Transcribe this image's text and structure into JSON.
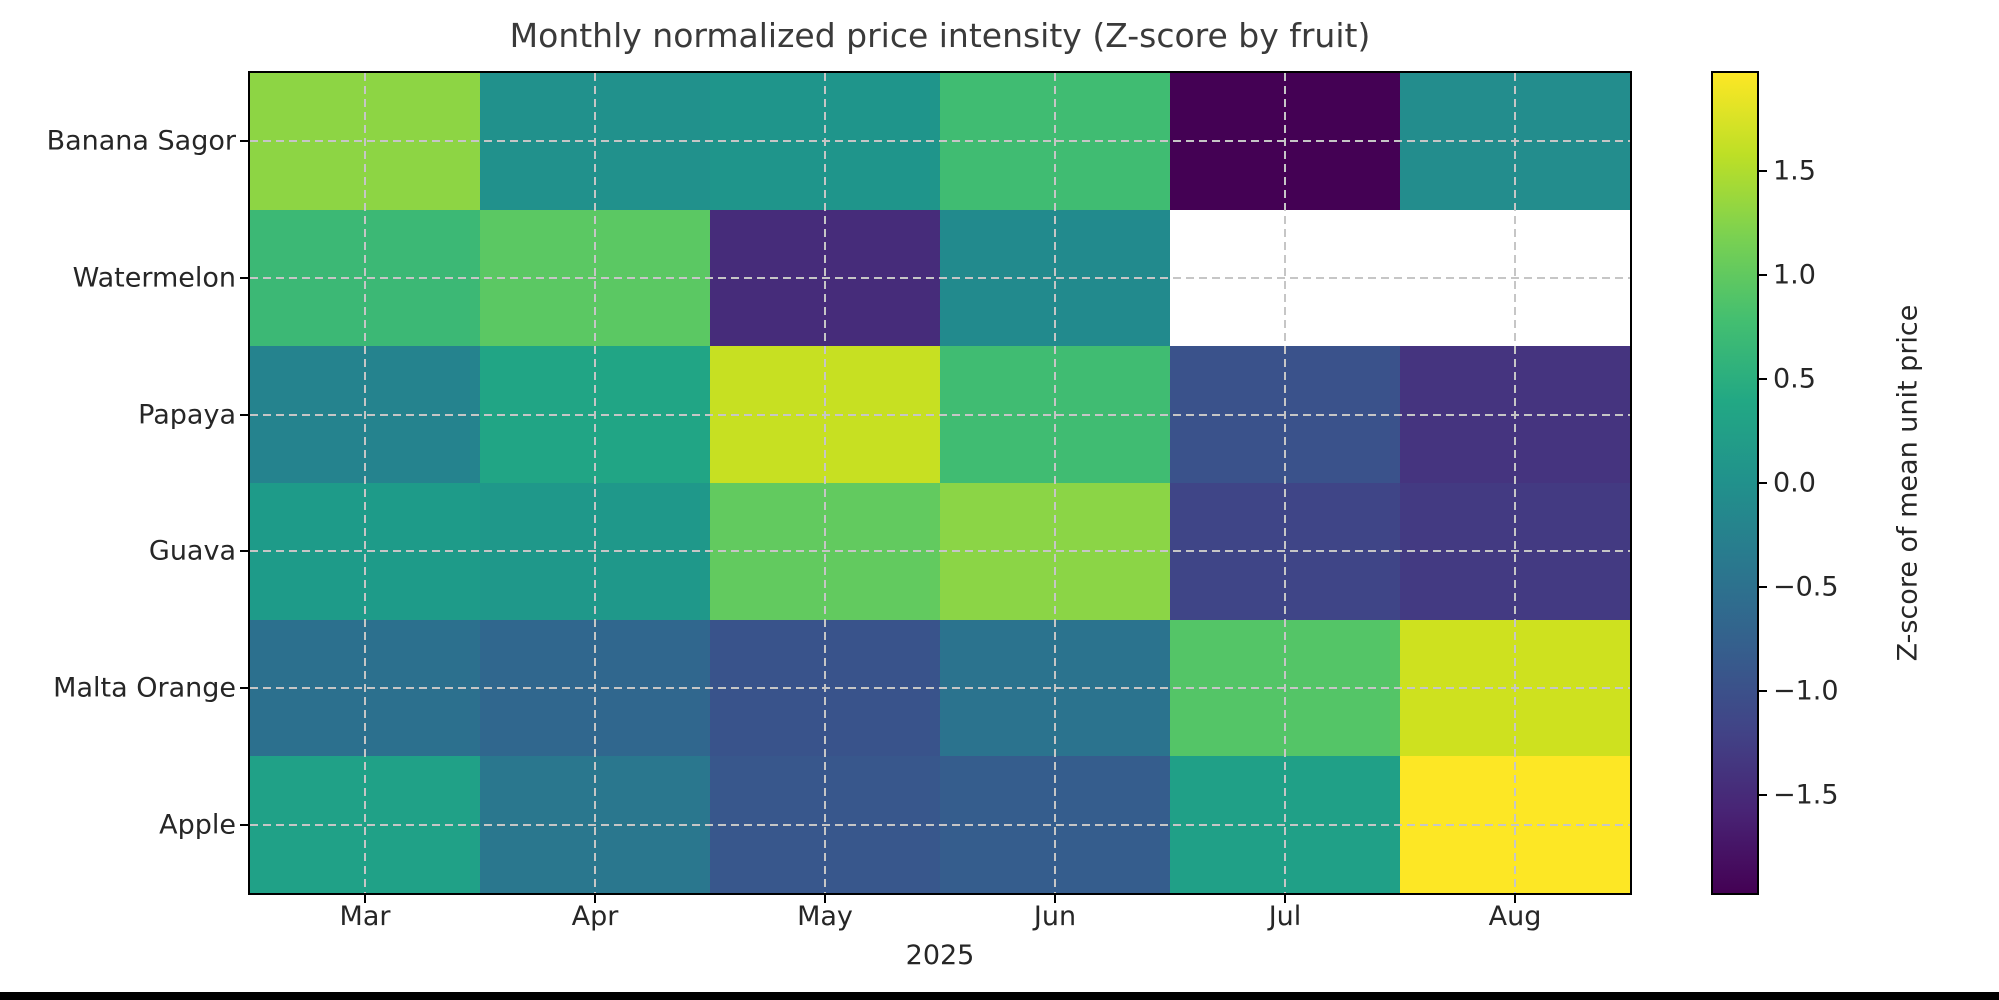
{
  "page": {
    "background_color": "#ffffff",
    "bottom_bar_color": "#000000"
  },
  "chart_data": {
    "type": "heatmap",
    "colormap": "viridis",
    "title": "Monthly normalized price intensity (Z-score by fruit)",
    "x_categories": [
      "Mar",
      "Apr",
      "May",
      "Jun",
      "Jul",
      "Aug"
    ],
    "x_axis_secondary_label": "2025",
    "y_categories": [
      "Banana Sagor",
      "Watermelon",
      "Papaya",
      "Guava",
      "Malta Orange",
      "Apple"
    ],
    "values": [
      [
        1.3,
        0.0,
        0.08,
        0.75,
        -1.97,
        -0.14
      ],
      [
        0.69,
        0.97,
        -1.48,
        -0.1,
        null,
        null
      ],
      [
        -0.22,
        0.35,
        1.64,
        0.75,
        -0.99,
        -1.38
      ],
      [
        0.2,
        0.14,
        1.02,
        1.33,
        -1.16,
        -1.3
      ],
      [
        -0.51,
        -0.65,
        -0.97,
        -0.47,
        0.91,
        1.67
      ],
      [
        0.3,
        -0.41,
        -0.91,
        -0.81,
        0.28,
        1.97
      ]
    ],
    "cell_colors": [
      [
        "#8dd544",
        "#21918c",
        "#1f958b",
        "#40bc72",
        "#440154",
        "#238d8d"
      ],
      [
        "#3cb875",
        "#5bc863",
        "#462c7a",
        "#228a8d",
        null,
        null
      ],
      [
        "#25838e",
        "#21a585",
        "#c7e022",
        "#40bc72",
        "#3a528b",
        "#45347f"
      ],
      [
        "#1e9b89",
        "#1f988a",
        "#62ca5f",
        "#8bd546",
        "#3f4587",
        "#433a82"
      ],
      [
        "#2c708e",
        "#30678e",
        "#39538b",
        "#2b738e",
        "#54c567",
        "#cee11f"
      ],
      [
        "#20a187",
        "#2a778e",
        "#38578c",
        "#355d8d",
        "#20a087",
        "#fde725"
      ]
    ],
    "null_color": "#ffffff",
    "grid": {
      "on": true,
      "style": "dashed",
      "color": "#c6c6c6",
      "position": "tick-centers"
    },
    "colorbar": {
      "label": "Z-score of mean unit price",
      "vmin": -1.97,
      "vmax": 1.97,
      "ticks": [
        1.5,
        1.0,
        0.5,
        0.0,
        -0.5,
        -1.0,
        -1.5
      ],
      "tick_labels": [
        "1.5",
        "1.0",
        "0.5",
        "0.0",
        "−0.5",
        "−1.0",
        "−1.5"
      ],
      "gradient_bottom_to_top": [
        "#440154",
        "#482475",
        "#414487",
        "#355f8d",
        "#2a788e",
        "#21918c",
        "#22a884",
        "#44bf70",
        "#7ad151",
        "#bddf26",
        "#fde725"
      ],
      "position": "right"
    }
  }
}
